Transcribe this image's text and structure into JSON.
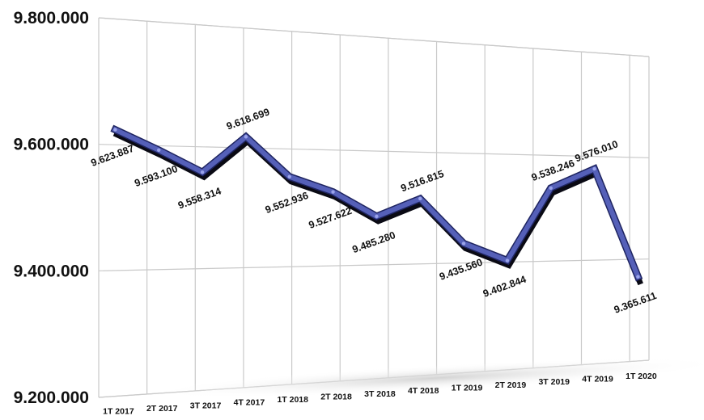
{
  "chart_data": {
    "type": "line",
    "title": "",
    "xlabel": "",
    "ylabel": "",
    "categories": [
      "1T 2017",
      "2T 2017",
      "3T 2017",
      "4T 2017",
      "1T 2018",
      "2T 2018",
      "3T 2018",
      "4T 2018",
      "1T 2019",
      "2T 2019",
      "3T 2019",
      "4T 2019",
      "1T 2020"
    ],
    "values": [
      9623887,
      9593100,
      9558314,
      9618699,
      9552936,
      9527622,
      9485280,
      9516815,
      9435560,
      9402844,
      9538246,
      9576010,
      9365611
    ],
    "data_labels": [
      "9.623.887",
      "9.593.100",
      "9.558.314",
      "9.618.699",
      "9.552.936",
      "9.527.622",
      "9.485.280",
      "9.516.815",
      "9.435.560",
      "9.402.844",
      "9.538.246",
      "9.576.010",
      "9.365.611"
    ],
    "y_ticks": [
      "9.800.000",
      "9.600.000",
      "9.400.000",
      "9.200.000"
    ],
    "ylim": [
      9200000,
      9800000
    ],
    "grid": true,
    "legend": "none",
    "line_color": "#5560b8"
  }
}
